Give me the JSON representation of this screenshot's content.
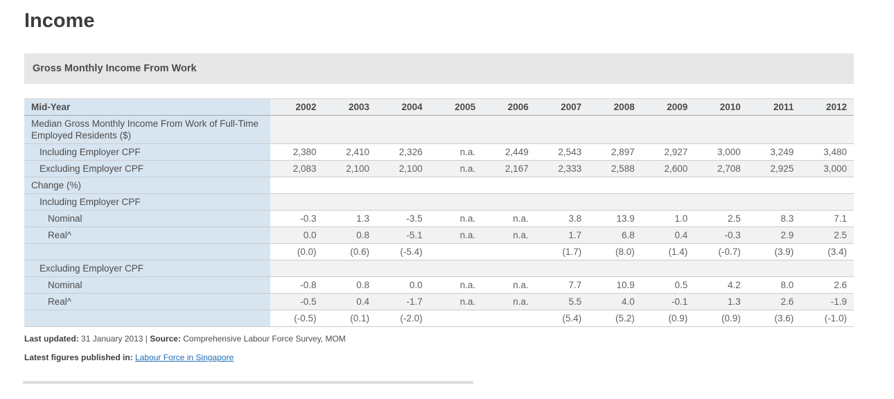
{
  "page": {
    "title": "Income"
  },
  "section": {
    "title": "Gross Monthly Income From Work"
  },
  "table": {
    "corner_label": "Mid-Year",
    "years": [
      "2002",
      "2003",
      "2004",
      "2005",
      "2006",
      "2007",
      "2008",
      "2009",
      "2010",
      "2011",
      "2012"
    ],
    "rows": [
      {
        "label": "Median Gross Monthly Income From Work of Full-Time Employed Residents ($)",
        "bold": true,
        "indent": 0,
        "bg": "gray",
        "values": [
          "",
          "",
          "",
          "",
          "",
          "",
          "",
          "",
          "",
          "",
          ""
        ]
      },
      {
        "label": "Including Employer CPF",
        "bold": false,
        "indent": 1,
        "bg": "white",
        "values": [
          "2,380",
          "2,410",
          "2,326",
          "n.a.",
          "2,449",
          "2,543",
          "2,897",
          "2,927",
          "3,000",
          "3,249",
          "3,480"
        ]
      },
      {
        "label": "Excluding Employer CPF",
        "bold": false,
        "indent": 1,
        "bg": "gray",
        "values": [
          "2,083",
          "2,100",
          "2,100",
          "n.a.",
          "2,167",
          "2,333",
          "2,588",
          "2,600",
          "2,708",
          "2,925",
          "3,000"
        ]
      },
      {
        "label": "Change (%)",
        "bold": true,
        "indent": 0,
        "bg": "white",
        "values": [
          "",
          "",
          "",
          "",
          "",
          "",
          "",
          "",
          "",
          "",
          ""
        ]
      },
      {
        "label": "Including Employer CPF",
        "bold": false,
        "indent": 1,
        "bg": "gray",
        "values": [
          "",
          "",
          "",
          "",
          "",
          "",
          "",
          "",
          "",
          "",
          ""
        ]
      },
      {
        "label": "Nominal",
        "bold": false,
        "indent": 2,
        "bg": "white",
        "values": [
          "-0.3",
          "1.3",
          "-3.5",
          "n.a.",
          "n.a.",
          "3.8",
          "13.9",
          "1.0",
          "2.5",
          "8.3",
          "7.1"
        ]
      },
      {
        "label": "Real^",
        "bold": false,
        "indent": 2,
        "bg": "gray",
        "values": [
          "0.0",
          "0.8",
          "-5.1",
          "n.a.",
          "n.a.",
          "1.7",
          "6.8",
          "0.4",
          "-0.3",
          "2.9",
          "2.5"
        ]
      },
      {
        "label": "",
        "bold": false,
        "indent": 2,
        "bg": "white",
        "values": [
          "(0.0)",
          "(0.6)",
          "(-5.4)",
          "",
          "",
          "(1.7)",
          "(8.0)",
          "(1.4)",
          "(-0.7)",
          "(3.9)",
          "(3.4)"
        ]
      },
      {
        "label": "Excluding Employer CPF",
        "bold": false,
        "indent": 1,
        "bg": "gray",
        "values": [
          "",
          "",
          "",
          "",
          "",
          "",
          "",
          "",
          "",
          "",
          ""
        ]
      },
      {
        "label": "Nominal",
        "bold": false,
        "indent": 2,
        "bg": "white",
        "values": [
          "-0.8",
          "0.8",
          "0.0",
          "n.a.",
          "n.a.",
          "7.7",
          "10.9",
          "0.5",
          "4.2",
          "8.0",
          "2.6"
        ]
      },
      {
        "label": "Real^",
        "bold": false,
        "indent": 2,
        "bg": "gray",
        "values": [
          "-0.5",
          "0.4",
          "-1.7",
          "n.a.",
          "n.a.",
          "5.5",
          "4.0",
          "-0.1",
          "1.3",
          "2.6",
          "-1.9"
        ]
      },
      {
        "label": "",
        "bold": false,
        "indent": 2,
        "bg": "white",
        "values": [
          "(-0.5)",
          "(0.1)",
          "(-2.0)",
          "",
          "",
          "(5.4)",
          "(5.2)",
          "(0.9)",
          "(0.9)",
          "(3.6)",
          "(-1.0)"
        ]
      }
    ]
  },
  "footer": {
    "last_updated_label": "Last updated:",
    "last_updated_value": "31 January 2013",
    "separator": "|",
    "source_label": "Source:",
    "source_value": "Comprehensive Labour Force Survey, MOM",
    "published_label": "Latest figures published in:",
    "published_link": "Labour Force in Singapore"
  }
}
